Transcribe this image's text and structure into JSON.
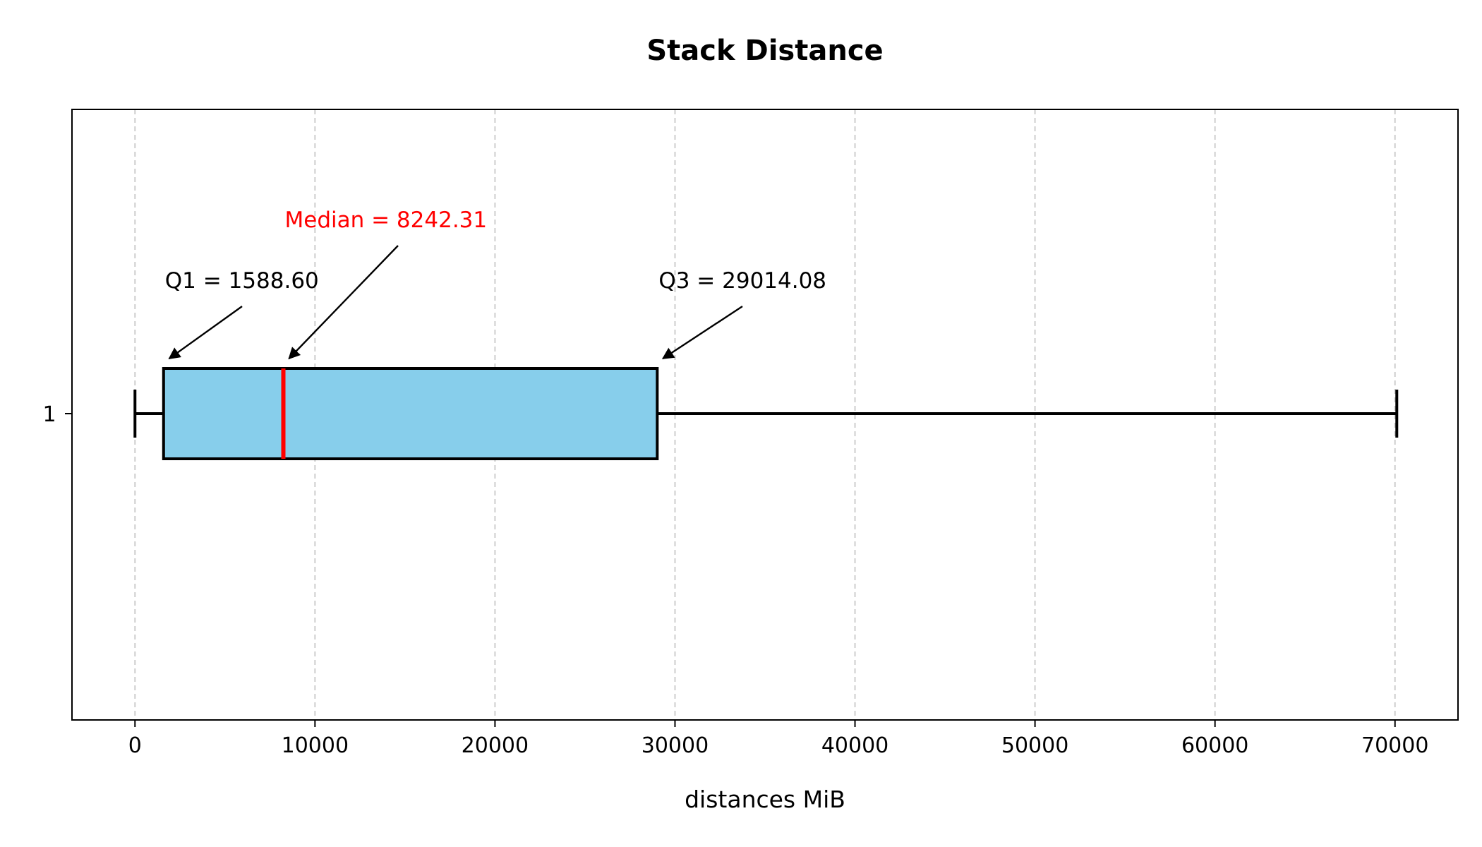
{
  "chart_data": {
    "type": "box",
    "orientation": "horizontal",
    "title": "Stack Distance",
    "xlabel": "distances MiB",
    "ylabel": "",
    "xlim": [
      -3500,
      73500
    ],
    "xticks": [
      0,
      10000,
      20000,
      30000,
      40000,
      50000,
      60000,
      70000
    ],
    "xtick_labels": [
      "0",
      "10000",
      "20000",
      "30000",
      "40000",
      "50000",
      "60000",
      "70000"
    ],
    "categories": [
      "1"
    ],
    "grid": "x-dashed",
    "box": {
      "whisker_low": 0,
      "q1": 1588.6,
      "median": 8242.31,
      "q3": 29014.08,
      "whisker_high": 70100
    },
    "annotations": [
      {
        "name": "q1",
        "text": "Q1 = 1588.60",
        "x": 1588.6
      },
      {
        "name": "median",
        "text": "Median = 8242.31",
        "x": 8242.31
      },
      {
        "name": "q3",
        "text": "Q3 = 29014.08",
        "x": 29014.08
      }
    ],
    "colors": {
      "box_fill": "#87ceeb",
      "box_edge": "#000000",
      "median": "#ff0000",
      "median_text": "#ff0000",
      "grid": "#c8c8c8"
    }
  }
}
